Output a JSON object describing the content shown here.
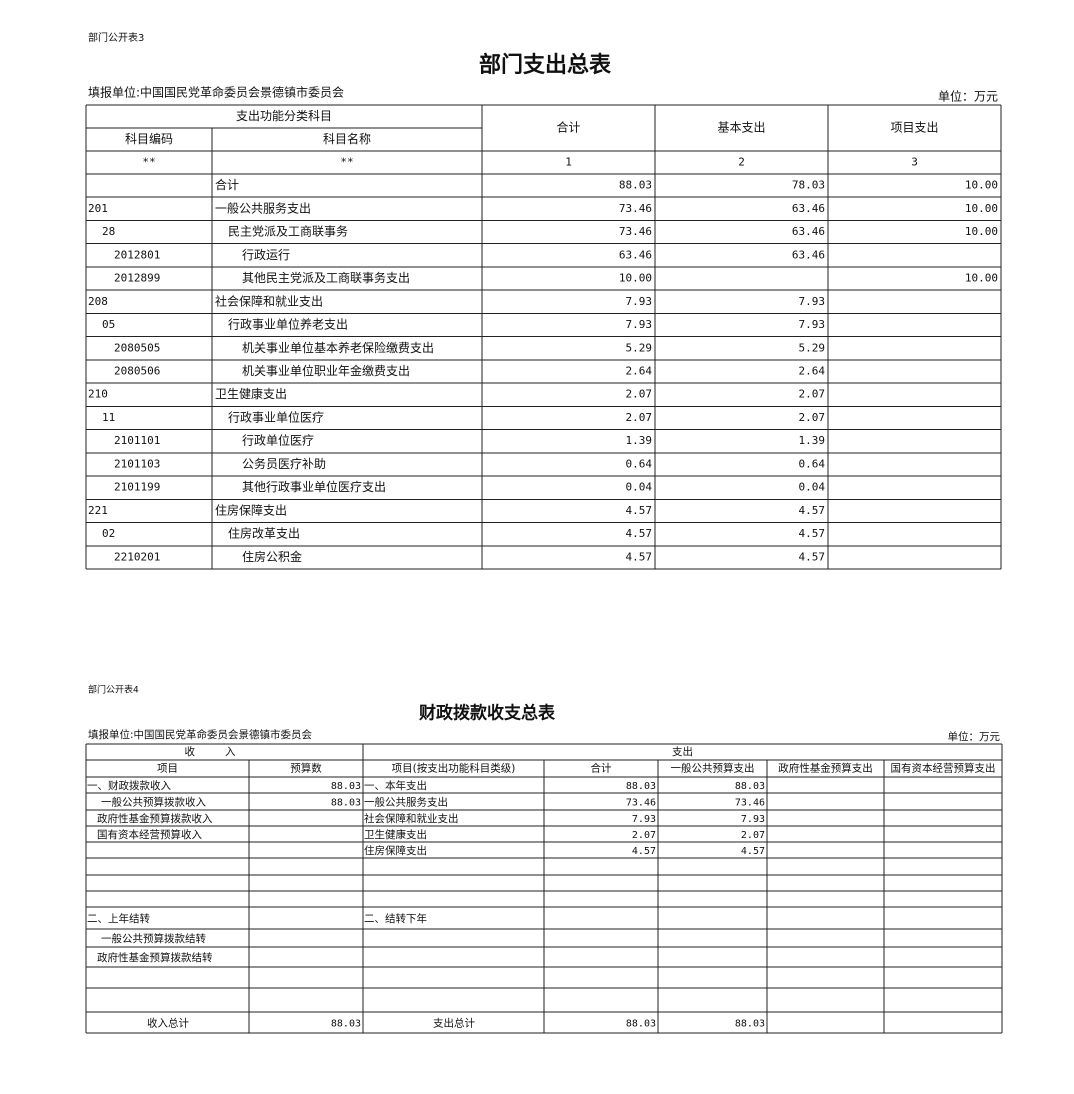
{
  "table1": {
    "label": "部门公开表3",
    "title": "部门支出总表",
    "org": "填报单位:中国国民党革命委员会景德镇市委员会",
    "unit": "单位：万元",
    "header": {
      "group": "支出功能分类科目",
      "code": "科目编码",
      "name": "科目名称",
      "total": "合计",
      "basic": "基本支出",
      "project": "项目支出"
    },
    "index_row": [
      "**",
      "**",
      "1",
      "2",
      "3"
    ],
    "rows": [
      [
        null,
        "合计",
        "88.03",
        "78.03",
        "10.00"
      ],
      [
        "201",
        "一般公共服务支出",
        "73.46",
        "63.46",
        "10.00"
      ],
      [
        "28",
        "民主党派及工商联事务",
        "73.46",
        "63.46",
        "10.00"
      ],
      [
        "2012801",
        "行政运行",
        "63.46",
        "63.46",
        null
      ],
      [
        "2012899",
        "其他民主党派及工商联事务支出",
        "10.00",
        null,
        "10.00"
      ],
      [
        "208",
        "社会保障和就业支出",
        "7.93",
        "7.93",
        null
      ],
      [
        "05",
        "行政事业单位养老支出",
        "7.93",
        "7.93",
        null
      ],
      [
        "2080505",
        "机关事业单位基本养老保险缴费支出",
        "5.29",
        "5.29",
        null
      ],
      [
        "2080506",
        "机关事业单位职业年金缴费支出",
        "2.64",
        "2.64",
        null
      ],
      [
        "210",
        "卫生健康支出",
        "2.07",
        "2.07",
        null
      ],
      [
        "11",
        "行政事业单位医疗",
        "2.07",
        "2.07",
        null
      ],
      [
        "2101101",
        "行政单位医疗",
        "1.39",
        "1.39",
        null
      ],
      [
        "2101103",
        "公务员医疗补助",
        "0.64",
        "0.64",
        null
      ],
      [
        "2101199",
        "其他行政事业单位医疗支出",
        "0.04",
        "0.04",
        null
      ],
      [
        "221",
        "住房保障支出",
        "4.57",
        "4.57",
        null
      ],
      [
        "02",
        "住房改革支出",
        "4.57",
        "4.57",
        null
      ],
      [
        "2210201",
        "住房公积金",
        "4.57",
        "4.57",
        null
      ]
    ]
  },
  "table2": {
    "label": "部门公开表4",
    "title": "财政拨款收支总表",
    "org": "填报单位:中国国民党革命委员会景德镇市委员会",
    "unit": "单位：万元",
    "header": {
      "income": "收入",
      "expense": "支出",
      "columns": [
        "项目",
        "预算数",
        "项目(按支出功能科目类级)",
        "合计",
        "一般公共预算支出",
        "政府性基金预算支出",
        "国有资本经营预算支出"
      ]
    },
    "rows": [
      [
        "一、财政拨款收入",
        "88.03",
        "一、本年支出",
        "88.03",
        "88.03",
        null,
        null
      ],
      [
        "一般公共预算拨款收入",
        "88.03",
        "一般公共服务支出",
        "73.46",
        "73.46",
        null,
        null
      ],
      [
        "政府性基金预算拨款收入",
        null,
        "社会保障和就业支出",
        "7.93",
        "7.93",
        null,
        null
      ],
      [
        "国有资本经营预算收入",
        null,
        "卫生健康支出",
        "2.07",
        "2.07",
        null,
        null
      ],
      [
        null,
        null,
        "住房保障支出",
        "4.57",
        "4.57",
        null,
        null
      ],
      [
        null,
        null,
        null,
        null,
        null,
        null,
        null
      ],
      [
        null,
        null,
        null,
        null,
        null,
        null,
        null
      ],
      [
        null,
        null,
        null,
        null,
        null,
        null,
        null
      ],
      [
        "二、上年结转",
        null,
        "二、结转下年",
        null,
        null,
        null,
        null
      ],
      [
        "一般公共预算拨款结转",
        null,
        null,
        null,
        null,
        null,
        null
      ],
      [
        "政府性基金预算拨款结转",
        null,
        null,
        null,
        null,
        null,
        null
      ],
      [
        null,
        null,
        null,
        null,
        null,
        null,
        null
      ],
      [
        null,
        null,
        null,
        null,
        null,
        null,
        null
      ],
      [
        "收入总计",
        "88.03",
        "支出总计",
        "88.03",
        "88.03",
        null,
        null
      ]
    ]
  }
}
